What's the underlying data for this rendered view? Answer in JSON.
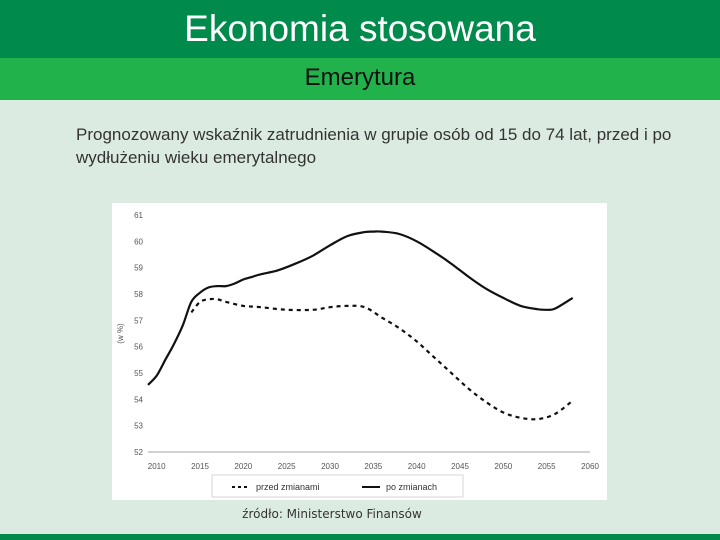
{
  "header": {
    "title": "Ekonomia stosowana",
    "subtitle": "Emerytura"
  },
  "description": "Prognozowany wskaźnik zatrudnienia w grupie osób od 15 do 74 lat, przed i po wydłużeniu wieku emerytalnego",
  "source": "źródło: Ministerstwo Finansów",
  "colors": {
    "title_bg": "#008a4b",
    "subtitle_bg": "#22b24c",
    "page_bg": "#dcebe2",
    "chart_bg": "#ffffff",
    "line": "#111111"
  },
  "chart_data": {
    "type": "line",
    "ylabel": "(w %)",
    "xlim": [
      2009,
      2060
    ],
    "ylim": [
      52,
      61
    ],
    "x_ticks": [
      2010,
      2015,
      2020,
      2025,
      2030,
      2035,
      2040,
      2045,
      2050,
      2055,
      2060
    ],
    "y_ticks": [
      52,
      53,
      54,
      55,
      56,
      57,
      58,
      59,
      60,
      61
    ],
    "grid": false,
    "legend_position": "bottom",
    "series": [
      {
        "name": "przed zmianami",
        "style": "dashed",
        "x": [
          2014,
          2015,
          2016,
          2017,
          2018,
          2020,
          2022,
          2025,
          2028,
          2030,
          2032,
          2034,
          2036,
          2038,
          2040,
          2042,
          2044,
          2046,
          2048,
          2050,
          2052,
          2054,
          2056,
          2058
        ],
        "y": [
          57.3,
          57.7,
          57.8,
          57.8,
          57.7,
          57.55,
          57.5,
          57.4,
          57.4,
          57.5,
          57.55,
          57.5,
          57.1,
          56.7,
          56.2,
          55.6,
          55.0,
          54.4,
          53.9,
          53.5,
          53.3,
          53.25,
          53.45,
          53.95
        ]
      },
      {
        "name": "po zmianach",
        "style": "solid",
        "x": [
          2009,
          2010,
          2011,
          2012,
          2013,
          2014,
          2015,
          2016,
          2017,
          2018,
          2019,
          2020,
          2021,
          2022,
          2024,
          2026,
          2028,
          2030,
          2032,
          2034,
          2035,
          2036,
          2038,
          2040,
          2042,
          2044,
          2046,
          2048,
          2050,
          2052,
          2054,
          2055,
          2056,
          2058
        ],
        "y": [
          54.55,
          54.9,
          55.5,
          56.1,
          56.8,
          57.7,
          58.05,
          58.25,
          58.3,
          58.3,
          58.4,
          58.55,
          58.65,
          58.75,
          58.9,
          59.15,
          59.45,
          59.85,
          60.2,
          60.35,
          60.37,
          60.37,
          60.28,
          60.0,
          59.6,
          59.15,
          58.65,
          58.2,
          57.85,
          57.55,
          57.42,
          57.4,
          57.45,
          57.85
        ]
      }
    ]
  }
}
